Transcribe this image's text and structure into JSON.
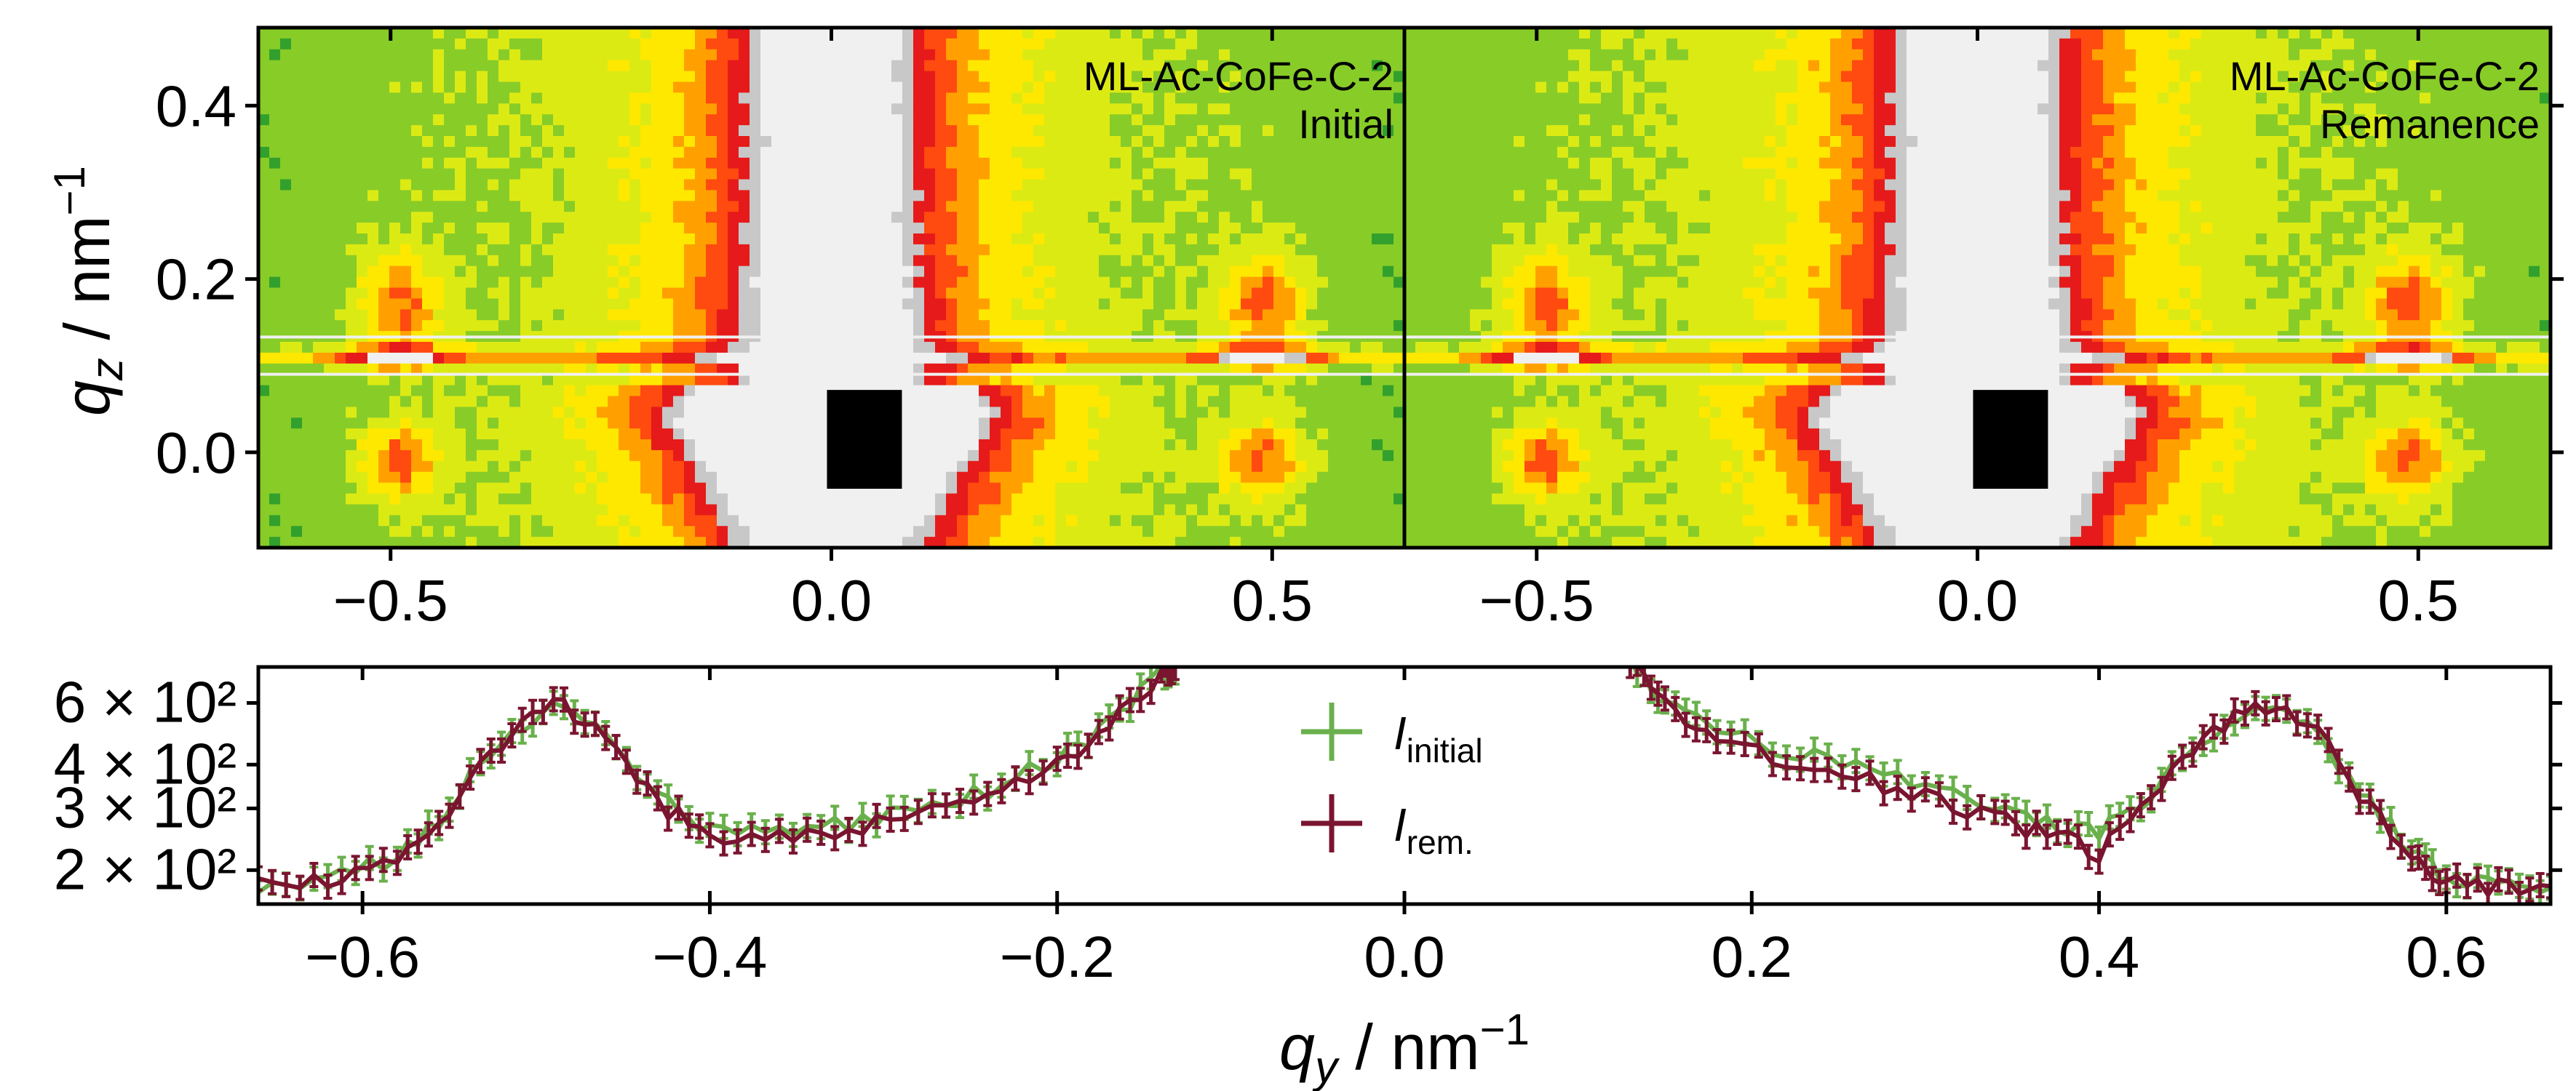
{
  "chart_data": [
    {
      "type": "heatmap",
      "panel": "top-left",
      "annotation": [
        "ML-Ac-CoFe-C-2",
        "Initial"
      ],
      "xlim": [
        -0.65,
        0.65
      ],
      "ylim": [
        -0.11,
        0.49
      ],
      "x_ticks": [
        "−0.5",
        "0.0",
        "0.5"
      ],
      "x_tick_values": [
        -0.5,
        0.0,
        0.5
      ],
      "y_ticks": [
        "0.0",
        "0.2",
        "0.4"
      ],
      "y_tick_values": [
        0.0,
        0.2,
        0.4
      ],
      "ylabel": "q_z / nm⁻¹",
      "colormap": [
        "#32a02c",
        "#88cc28",
        "#dcea14",
        "#ffe800",
        "#ffa000",
        "#ff4a10",
        "#e61a1a",
        "#c8c8c8",
        "#f0f0f0"
      ],
      "beamstop": {
        "x": [
          -0.005,
          0.08
        ],
        "y": [
          -0.042,
          0.072
        ]
      },
      "line_cut_band": [
        0.09,
        0.133
      ]
    },
    {
      "type": "heatmap",
      "panel": "top-right",
      "annotation": [
        "ML-Ac-CoFe-C-2",
        "Remanence"
      ],
      "xlim": [
        -0.65,
        0.65
      ],
      "ylim": [
        -0.11,
        0.49
      ],
      "x_ticks": [
        "−0.5",
        "0.0",
        "0.5"
      ],
      "x_tick_values": [
        -0.5,
        0.0,
        0.5
      ],
      "beamstop": {
        "x": [
          -0.005,
          0.08
        ],
        "y": [
          -0.042,
          0.072
        ]
      },
      "line_cut_band": [
        0.09,
        0.133
      ]
    },
    {
      "type": "line",
      "panel": "bottom",
      "xlabel": "q_y / nm⁻¹",
      "xlim": [
        -0.66,
        0.66
      ],
      "ylim": [
        160,
        760
      ],
      "yscale": "log",
      "x_ticks": [
        "−0.6",
        "−0.4",
        "−0.2",
        "0.0",
        "0.2",
        "0.4",
        "0.6"
      ],
      "x_tick_values": [
        -0.6,
        -0.4,
        -0.2,
        0.0,
        0.2,
        0.4,
        0.6
      ],
      "y_ticks": [
        "2 × 10²",
        "3 × 10²",
        "4 × 10²",
        "6 × 10²"
      ],
      "y_tick_values": [
        200,
        300,
        400,
        600
      ],
      "legend_position": "upper-center",
      "series": [
        {
          "name": "I_initial",
          "legend_main": "I",
          "legend_sub": "initial",
          "color": "#6ab04c",
          "x": [
            -0.66,
            -0.62,
            -0.58,
            -0.55,
            -0.52,
            -0.49,
            -0.46,
            -0.43,
            -0.4,
            -0.36,
            -0.32,
            -0.28,
            -0.24,
            -0.2,
            -0.17,
            -0.14,
            -0.13,
            0.13,
            0.15,
            0.18,
            0.22,
            0.26,
            0.3,
            0.34,
            0.37,
            0.4,
            0.43,
            0.46,
            0.49,
            0.52,
            0.55,
            0.58,
            0.6,
            0.63,
            0.66
          ],
          "y": [
            178,
            190,
            215,
            295,
            470,
            600,
            480,
            320,
            260,
            260,
            275,
            300,
            340,
            410,
            520,
            720,
            780,
            780,
            600,
            510,
            440,
            395,
            345,
            295,
            270,
            255,
            330,
            470,
            580,
            520,
            330,
            225,
            190,
            180,
            178
          ]
        },
        {
          "name": "I_rem.",
          "legend_main": "I",
          "legend_sub": "rem.",
          "color": "#7a1530",
          "x": [
            -0.66,
            -0.62,
            -0.58,
            -0.55,
            -0.52,
            -0.49,
            -0.46,
            -0.43,
            -0.4,
            -0.36,
            -0.32,
            -0.28,
            -0.24,
            -0.2,
            -0.17,
            -0.14,
            -0.13,
            0.13,
            0.15,
            0.18,
            0.22,
            0.26,
            0.3,
            0.34,
            0.37,
            0.4,
            0.43,
            0.46,
            0.49,
            0.52,
            0.55,
            0.58,
            0.6,
            0.63,
            0.66
          ],
          "y": [
            180,
            185,
            210,
            280,
            460,
            610,
            470,
            310,
            250,
            245,
            265,
            290,
            330,
            400,
            515,
            720,
            780,
            780,
            590,
            490,
            410,
            370,
            325,
            280,
            255,
            225,
            320,
            465,
            600,
            540,
            320,
            215,
            185,
            178,
            180
          ]
        }
      ]
    }
  ]
}
